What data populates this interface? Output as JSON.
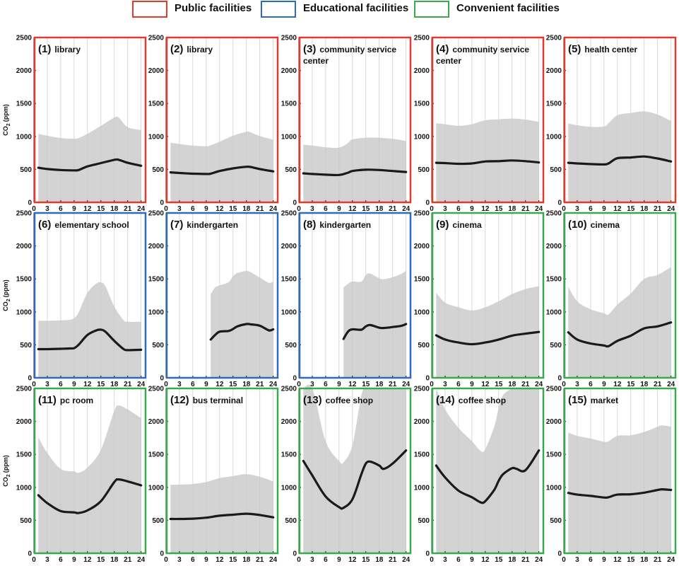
{
  "legend": {
    "items": [
      {
        "label": "Public facilities",
        "color": "#e03c2c"
      },
      {
        "label": "Educational facilities",
        "color": "#2e6db5"
      },
      {
        "label": "Convenient facilities",
        "color": "#3aa94e"
      }
    ]
  },
  "axis": {
    "ylabel": "CO2 (ppm)",
    "ylabel_main": "CO",
    "ylabel_sub": "2",
    "ylabel_unit": "(ppm)",
    "ylim": [
      0,
      2500
    ],
    "yticks": [
      0,
      500,
      1000,
      1500,
      2000,
      2500
    ],
    "xlim": [
      0,
      25
    ],
    "xticks": [
      0,
      3,
      6,
      9,
      12,
      15,
      18,
      21,
      24
    ]
  },
  "chart_data": [
    {
      "type": "line",
      "id": "1",
      "title_num": "(1)",
      "title": "library",
      "category": "public",
      "x": [
        1,
        3,
        6,
        9,
        10,
        12,
        15,
        18,
        19,
        21,
        24
      ],
      "mean": [
        525,
        505,
        490,
        485,
        490,
        545,
        595,
        645,
        645,
        600,
        555
      ],
      "upper": [
        1040,
        1010,
        975,
        965,
        975,
        1040,
        1160,
        1285,
        1285,
        1140,
        1095
      ]
    },
    {
      "type": "line",
      "id": "2",
      "title_num": "(2)",
      "title": "library",
      "category": "public",
      "x": [
        1,
        3,
        6,
        9,
        10,
        12,
        15,
        18,
        19,
        21,
        24
      ],
      "mean": [
        455,
        445,
        435,
        430,
        435,
        475,
        515,
        540,
        535,
        505,
        470
      ],
      "upper": [
        905,
        885,
        860,
        850,
        865,
        920,
        1010,
        1070,
        1060,
        1005,
        950
      ]
    },
    {
      "type": "line",
      "id": "3",
      "title_num": "(3)",
      "title": "community service",
      "title2": "center",
      "category": "public",
      "x": [
        1,
        3,
        6,
        9,
        11,
        12,
        15,
        18,
        21,
        24
      ],
      "mean": [
        440,
        430,
        420,
        415,
        450,
        475,
        495,
        490,
        475,
        460
      ],
      "upper": [
        875,
        860,
        835,
        830,
        900,
        955,
        980,
        980,
        965,
        930
      ]
    },
    {
      "type": "line",
      "id": "4",
      "title_num": "(4)",
      "title": "community service",
      "title2": "center",
      "category": "public",
      "x": [
        1,
        3,
        6,
        9,
        12,
        15,
        18,
        21,
        24
      ],
      "mean": [
        600,
        595,
        585,
        590,
        620,
        625,
        635,
        625,
        605
      ],
      "upper": [
        1200,
        1185,
        1160,
        1185,
        1245,
        1260,
        1270,
        1255,
        1220
      ]
    },
    {
      "type": "line",
      "id": "5",
      "title_num": "(5)",
      "title": "health center",
      "category": "public",
      "x": [
        1,
        3,
        6,
        9,
        10,
        12,
        15,
        18,
        21,
        24
      ],
      "mean": [
        600,
        590,
        580,
        575,
        590,
        670,
        680,
        695,
        665,
        620
      ],
      "upper": [
        1195,
        1170,
        1145,
        1150,
        1200,
        1320,
        1355,
        1380,
        1330,
        1235
      ]
    },
    {
      "type": "line",
      "id": "6",
      "title_num": "(6)",
      "title": "elementary school",
      "category": "educational",
      "x": [
        1,
        3,
        6,
        8,
        9,
        10,
        12,
        14,
        15,
        16,
        18,
        20,
        21,
        24
      ],
      "mean": [
        435,
        435,
        440,
        445,
        450,
        500,
        650,
        720,
        730,
        700,
        560,
        440,
        420,
        425
      ],
      "upper": [
        865,
        865,
        870,
        880,
        905,
        990,
        1290,
        1430,
        1445,
        1390,
        1080,
        880,
        850,
        850
      ]
    },
    {
      "type": "line",
      "id": "7",
      "title_num": "(7)",
      "title": "kindergarten",
      "category": "educational",
      "x": [
        10,
        11,
        12,
        14,
        15,
        16,
        18,
        19,
        21,
        23,
        24
      ],
      "mean": [
        580,
        650,
        700,
        710,
        740,
        780,
        815,
        810,
        790,
        720,
        735
      ],
      "upper": [
        1270,
        1370,
        1400,
        1450,
        1540,
        1590,
        1620,
        1600,
        1520,
        1440,
        1460
      ]
    },
    {
      "type": "line",
      "id": "8",
      "title_num": "(8)",
      "title": "kindergarten",
      "category": "educational",
      "x": [
        10,
        11,
        12,
        14,
        15,
        16,
        18,
        19,
        21,
        23,
        24
      ],
      "mean": [
        590,
        700,
        735,
        730,
        780,
        800,
        760,
        755,
        770,
        790,
        815
      ],
      "upper": [
        1370,
        1425,
        1460,
        1460,
        1560,
        1580,
        1510,
        1495,
        1525,
        1580,
        1625
      ]
    },
    {
      "type": "line",
      "id": "9",
      "title_num": "(9)",
      "title": "cinema",
      "category": "convenient",
      "x": [
        1,
        3,
        6,
        9,
        12,
        15,
        18,
        21,
        24
      ],
      "mean": [
        645,
        580,
        535,
        510,
        535,
        580,
        640,
        670,
        695
      ],
      "upper": [
        1290,
        1140,
        1070,
        1020,
        1070,
        1160,
        1270,
        1345,
        1390
      ]
    },
    {
      "type": "line",
      "id": "10",
      "title_num": "(10)",
      "title": "cinema",
      "category": "convenient",
      "x": [
        1,
        3,
        6,
        9,
        10,
        12,
        15,
        18,
        21,
        24
      ],
      "mean": [
        690,
        580,
        520,
        490,
        480,
        560,
        640,
        750,
        780,
        840
      ],
      "upper": [
        1380,
        1160,
        1040,
        980,
        960,
        1110,
        1280,
        1500,
        1560,
        1680
      ]
    },
    {
      "type": "line",
      "id": "11",
      "title_num": "(11)",
      "title": "pc room",
      "category": "convenient",
      "x": [
        1,
        3,
        6,
        9,
        10,
        12,
        15,
        18,
        19,
        21,
        24
      ],
      "mean": [
        880,
        760,
        640,
        620,
        610,
        650,
        790,
        1080,
        1120,
        1090,
        1030
      ],
      "upper": [
        1760,
        1520,
        1280,
        1240,
        1220,
        1300,
        1570,
        2160,
        2240,
        2180,
        2050
      ]
    },
    {
      "type": "line",
      "id": "12",
      "title_num": "(12)",
      "title": "bus terminal",
      "category": "convenient",
      "x": [
        1,
        3,
        6,
        9,
        12,
        15,
        18,
        21,
        24
      ],
      "mean": [
        520,
        520,
        525,
        540,
        570,
        585,
        600,
        580,
        545
      ],
      "upper": [
        1040,
        1040,
        1050,
        1080,
        1140,
        1170,
        1200,
        1160,
        1090
      ]
    },
    {
      "type": "line",
      "id": "13",
      "title_num": "(13)",
      "title": "coffee shop",
      "category": "convenient",
      "x": [
        1,
        3,
        6,
        9,
        10,
        12,
        14,
        15,
        16,
        18,
        19,
        21,
        24
      ],
      "mean": [
        1400,
        1180,
        860,
        700,
        690,
        820,
        1200,
        1360,
        1390,
        1330,
        1280,
        1360,
        1560
      ],
      "upper": [
        2500,
        2500,
        1700,
        1400,
        1380,
        1640,
        2400,
        2500,
        2500,
        2500,
        2500,
        2500,
        2500
      ]
    },
    {
      "type": "line",
      "id": "14",
      "title_num": "(14)",
      "title": "coffee shop",
      "category": "convenient",
      "x": [
        1,
        3,
        6,
        9,
        11,
        12,
        14,
        15,
        16,
        18,
        19,
        21,
        24
      ],
      "mean": [
        1330,
        1150,
        950,
        850,
        770,
        790,
        960,
        1100,
        1200,
        1290,
        1280,
        1260,
        1560
      ],
      "upper": [
        2500,
        2180,
        1900,
        1700,
        1550,
        1580,
        1920,
        2200,
        2400,
        2500,
        2500,
        2500,
        2500
      ]
    },
    {
      "type": "line",
      "id": "15",
      "title_num": "(15)",
      "title": "market",
      "category": "convenient",
      "x": [
        1,
        3,
        6,
        9,
        10,
        12,
        15,
        18,
        21,
        22,
        24
      ],
      "mean": [
        915,
        890,
        870,
        845,
        850,
        890,
        895,
        920,
        960,
        970,
        960
      ],
      "upper": [
        1830,
        1780,
        1740,
        1690,
        1700,
        1780,
        1790,
        1840,
        1920,
        1940,
        1920
      ]
    }
  ]
}
